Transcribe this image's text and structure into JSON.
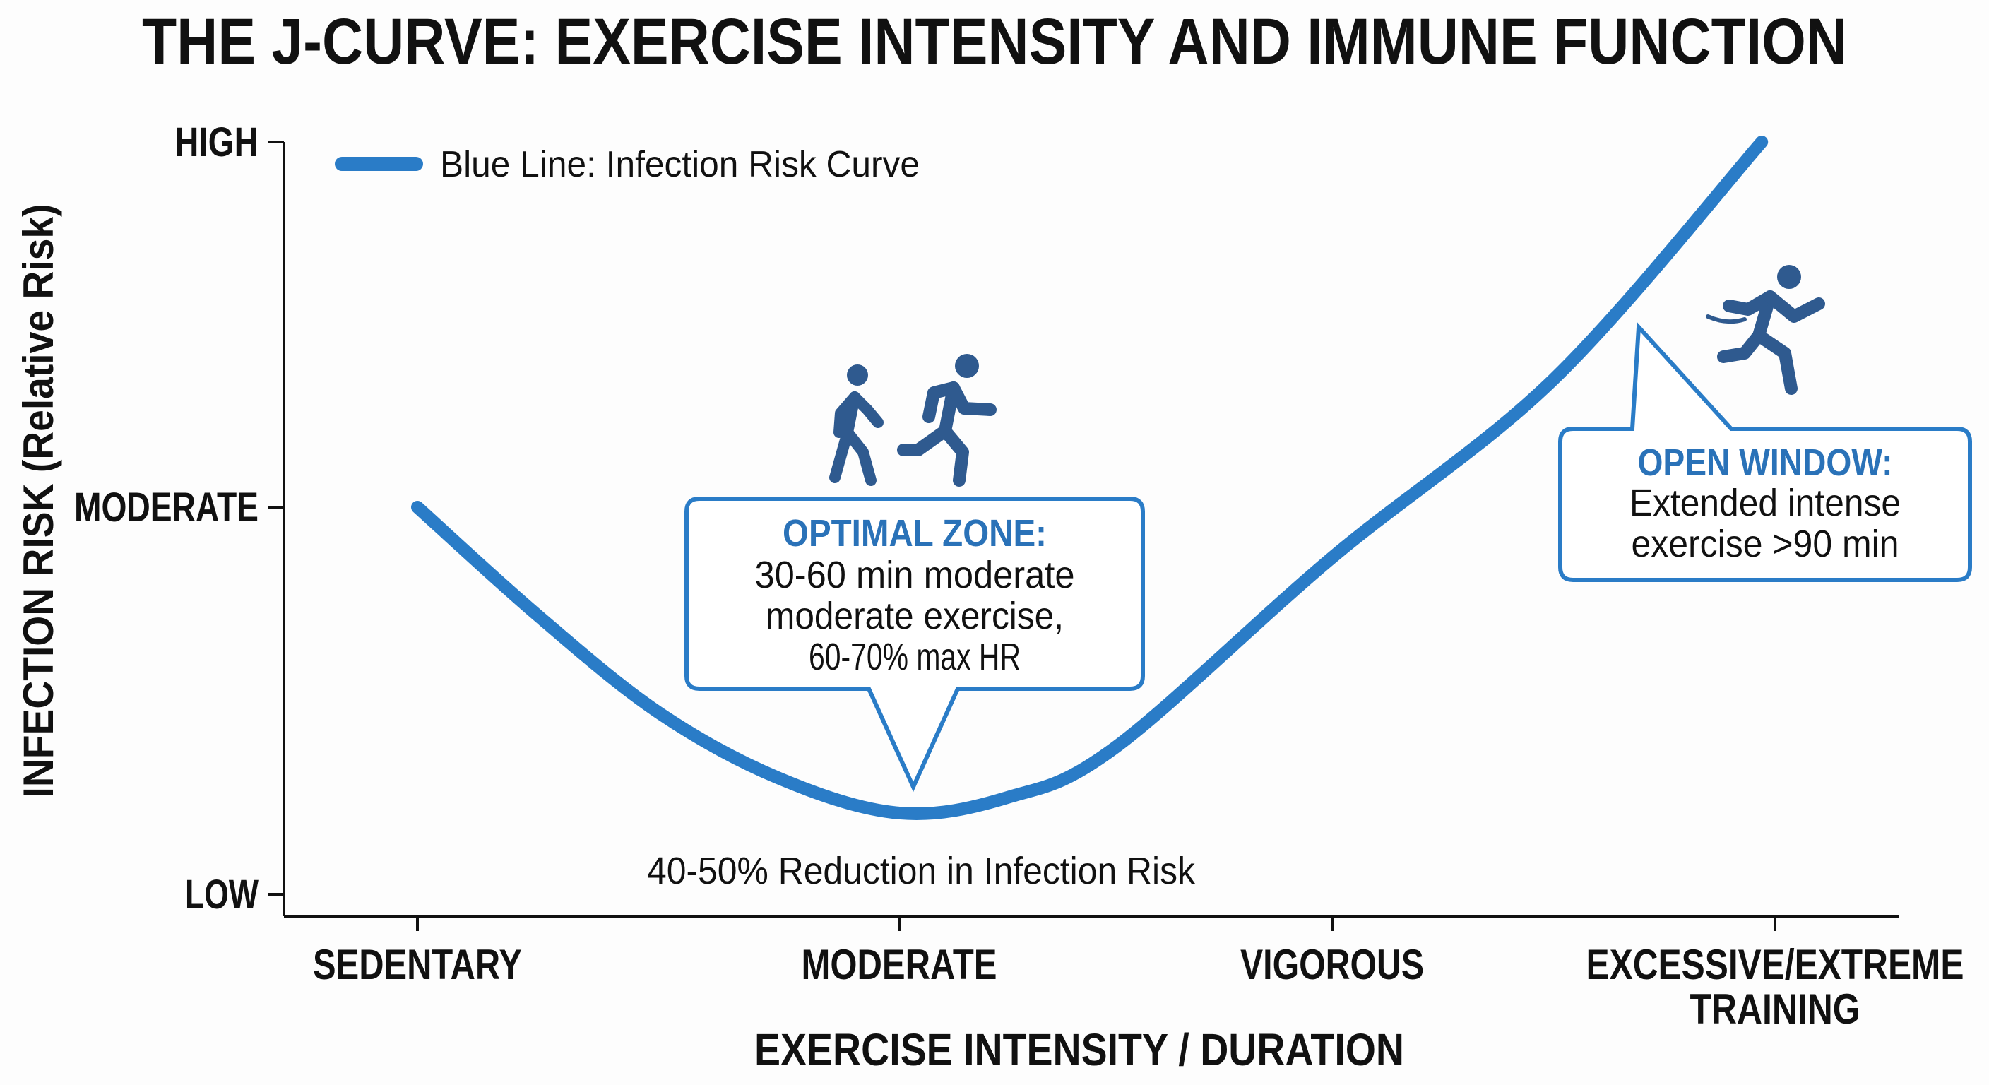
{
  "chart_data": {
    "type": "line",
    "title": "THE J-CURVE: EXERCISE INTENSITY AND IMMUNE FUNCTION",
    "xlabel": "EXERCISE INTENSITY / DURATION",
    "ylabel": "INFECTION RISK (Relative Risk)",
    "x_categories": [
      "SEDENTARY",
      "MODERATE",
      "VIGOROUS",
      "EXCESSIVE/EXTREME",
      "TRAINING"
    ],
    "y_categories": [
      "LOW",
      "MODERATE",
      "HIGH"
    ],
    "ylim": [
      0,
      2
    ],
    "xlim": [
      0,
      3
    ],
    "grid": false,
    "legend_position": "top-left",
    "legend": "Blue Line: Infection Risk Curve",
    "series": [
      {
        "name": "Blue Line: Infection Risk Curve",
        "color": "#2a7cc7",
        "points": [
          [
            0,
            1.0
          ],
          [
            0.25,
            0.72
          ],
          [
            0.5,
            0.47
          ],
          [
            0.75,
            0.3
          ],
          [
            1.0,
            0.21
          ],
          [
            1.25,
            0.25
          ],
          [
            1.5,
            0.38
          ],
          [
            2.0,
            0.87
          ],
          [
            2.5,
            1.35
          ],
          [
            2.97,
            2.0
          ]
        ]
      }
    ],
    "annotations": {
      "reduction": "40-50% Reduction in Infection Risk",
      "optimal": {
        "title": "OPTIMAL ZONE:",
        "lines": [
          "30-60 min moderate",
          "moderate exercise,",
          "60-70% max HR"
        ]
      },
      "open_window": {
        "title": "OPEN WINDOW:",
        "lines": [
          "Extended intense",
          "exercise >90 min"
        ]
      }
    },
    "icons": [
      "walking-person-icon",
      "running-person-icon",
      "sprinting-person-icon"
    ],
    "colors": {
      "curve": "#2a7cc7",
      "callout_title": "#2a72b8",
      "icon": "#2f5a8f",
      "text": "#111111"
    }
  }
}
